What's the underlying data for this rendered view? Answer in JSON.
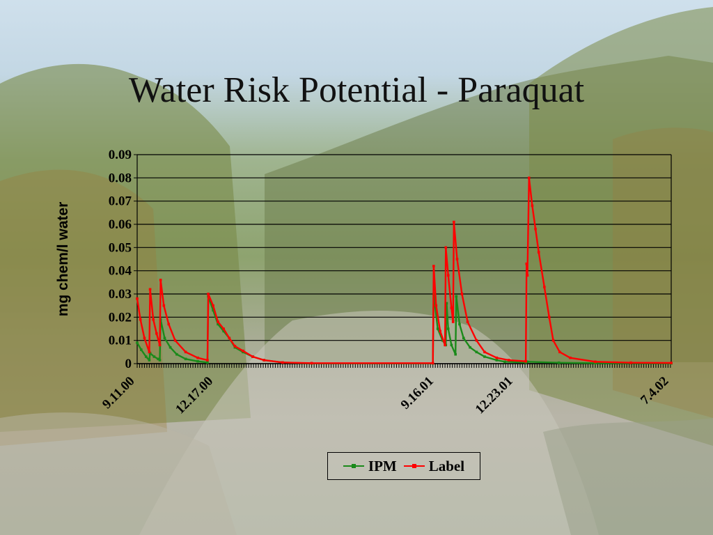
{
  "slide": {
    "title": "Water Risk Potential - Paraquat"
  },
  "chart_data": {
    "type": "line",
    "title": "Water Risk Potential - Paraquat",
    "xlabel": "",
    "ylabel": "mg chem/l water",
    "ylim": [
      0,
      0.09
    ],
    "yticks": [
      "0",
      "0.01",
      "0.02",
      "0.03",
      "0.04",
      "0.05",
      "0.06",
      "0.07",
      "0.08",
      "0.09"
    ],
    "xlim": [
      "2000-09-11",
      "2002-07-04"
    ],
    "xticks": [
      {
        "label": "9.11.00",
        "date": "2000-09-11"
      },
      {
        "label": "12.17.00",
        "date": "2000-12-17"
      },
      {
        "label": "9.16.01",
        "date": "2001-09-16"
      },
      {
        "label": "12.23.01",
        "date": "2001-12-23"
      },
      {
        "label": "7.4.02",
        "date": "2002-07-04"
      }
    ],
    "grid": true,
    "legend": "bottom",
    "series": [
      {
        "name": "IPM",
        "color": "#1a8a1a",
        "points": [
          [
            "2000-09-11",
            0.009
          ],
          [
            "2000-09-16",
            0.006
          ],
          [
            "2000-09-22",
            0.003
          ],
          [
            "2000-09-26",
            0.0015
          ],
          [
            "2000-09-27",
            0.0045
          ],
          [
            "2000-10-02",
            0.003
          ],
          [
            "2000-10-07",
            0.002
          ],
          [
            "2000-10-09",
            0.0015
          ],
          [
            "2000-10-10",
            0.019
          ],
          [
            "2000-10-15",
            0.011
          ],
          [
            "2000-10-22",
            0.007
          ],
          [
            "2000-10-30",
            0.004
          ],
          [
            "2000-11-10",
            0.002
          ],
          [
            "2000-11-25",
            0.001
          ],
          [
            "2000-12-07",
            0.0005
          ],
          [
            "2000-12-08",
            0.029
          ],
          [
            "2000-12-14",
            0.023
          ],
          [
            "2000-12-20",
            0.017
          ],
          [
            "2000-12-27",
            0.014
          ],
          [
            "2001-01-03",
            0.011
          ],
          [
            "2001-01-10",
            0.007
          ],
          [
            "2001-01-20",
            0.005
          ],
          [
            "2001-02-01",
            0.003
          ],
          [
            "2001-02-15",
            0.0015
          ],
          [
            "2001-03-10",
            0.0005
          ],
          [
            "2001-04-15",
            0.0001
          ],
          [
            "2001-09-12",
            0.0001
          ],
          [
            "2001-09-13",
            0.03
          ],
          [
            "2001-09-18",
            0.015
          ],
          [
            "2001-09-24",
            0.01
          ],
          [
            "2001-09-28",
            0.008
          ],
          [
            "2001-09-29",
            0.026
          ],
          [
            "2001-10-01",
            0.015
          ],
          [
            "2001-10-05",
            0.008
          ],
          [
            "2001-10-10",
            0.004
          ],
          [
            "2001-10-11",
            0.029
          ],
          [
            "2001-10-15",
            0.017
          ],
          [
            "2001-10-20",
            0.011
          ],
          [
            "2001-10-28",
            0.007
          ],
          [
            "2001-11-05",
            0.005
          ],
          [
            "2001-11-15",
            0.003
          ],
          [
            "2001-11-30",
            0.0015
          ],
          [
            "2001-12-10",
            0.0008
          ],
          [
            "2002-01-05",
            0.0005
          ],
          [
            "2002-01-07",
            0.0008
          ],
          [
            "2002-02-15",
            0.0004
          ],
          [
            "2002-04-01",
            0.0002
          ],
          [
            "2002-07-04",
            0.0001
          ]
        ]
      },
      {
        "name": "Label",
        "color": "#ff0000",
        "points": [
          [
            "2000-09-11",
            0.028
          ],
          [
            "2000-09-15",
            0.019
          ],
          [
            "2000-09-20",
            0.011
          ],
          [
            "2000-09-26",
            0.005
          ],
          [
            "2000-09-27",
            0.032
          ],
          [
            "2000-10-01",
            0.019
          ],
          [
            "2000-10-05",
            0.013
          ],
          [
            "2000-10-09",
            0.008
          ],
          [
            "2000-10-10",
            0.036
          ],
          [
            "2000-10-14",
            0.025
          ],
          [
            "2000-10-20",
            0.017
          ],
          [
            "2000-10-28",
            0.01
          ],
          [
            "2000-11-10",
            0.005
          ],
          [
            "2000-11-25",
            0.0025
          ],
          [
            "2000-12-07",
            0.0015
          ],
          [
            "2000-12-08",
            0.03
          ],
          [
            "2000-12-14",
            0.025
          ],
          [
            "2000-12-20",
            0.018
          ],
          [
            "2000-12-27",
            0.015
          ],
          [
            "2001-01-03",
            0.011
          ],
          [
            "2001-01-10",
            0.0075
          ],
          [
            "2001-01-20",
            0.0055
          ],
          [
            "2001-02-01",
            0.003
          ],
          [
            "2001-02-15",
            0.0015
          ],
          [
            "2001-03-10",
            0.0005
          ],
          [
            "2001-04-15",
            0.0002
          ],
          [
            "2001-09-12",
            0.0002
          ],
          [
            "2001-09-13",
            0.042
          ],
          [
            "2001-09-16",
            0.025
          ],
          [
            "2001-09-21",
            0.014
          ],
          [
            "2001-09-27",
            0.008
          ],
          [
            "2001-09-28",
            0.05
          ],
          [
            "2001-10-01",
            0.038
          ],
          [
            "2001-10-05",
            0.024
          ],
          [
            "2001-10-07",
            0.018
          ],
          [
            "2001-10-08",
            0.061
          ],
          [
            "2001-10-12",
            0.045
          ],
          [
            "2001-10-18",
            0.03
          ],
          [
            "2001-10-25",
            0.018
          ],
          [
            "2001-11-05",
            0.01
          ],
          [
            "2001-11-15",
            0.005
          ],
          [
            "2001-11-30",
            0.0025
          ],
          [
            "2001-12-15",
            0.0015
          ],
          [
            "2002-01-05",
            0.001
          ],
          [
            "2002-01-06",
            0.043
          ],
          [
            "2002-01-07",
            0.038
          ],
          [
            "2002-01-09",
            0.08
          ],
          [
            "2002-01-13",
            0.068
          ],
          [
            "2002-01-17",
            0.058
          ],
          [
            "2002-01-21",
            0.048
          ],
          [
            "2002-01-28",
            0.033
          ],
          [
            "2002-02-03",
            0.02
          ],
          [
            "2002-02-08",
            0.01
          ],
          [
            "2002-02-16",
            0.005
          ],
          [
            "2002-03-01",
            0.0025
          ],
          [
            "2002-04-01",
            0.0008
          ],
          [
            "2002-05-15",
            0.0004
          ],
          [
            "2002-07-04",
            0.0003
          ]
        ]
      }
    ]
  },
  "colors": {
    "gridline": "#000000",
    "ipm": "#1a8a1a",
    "label": "#ff0000"
  }
}
